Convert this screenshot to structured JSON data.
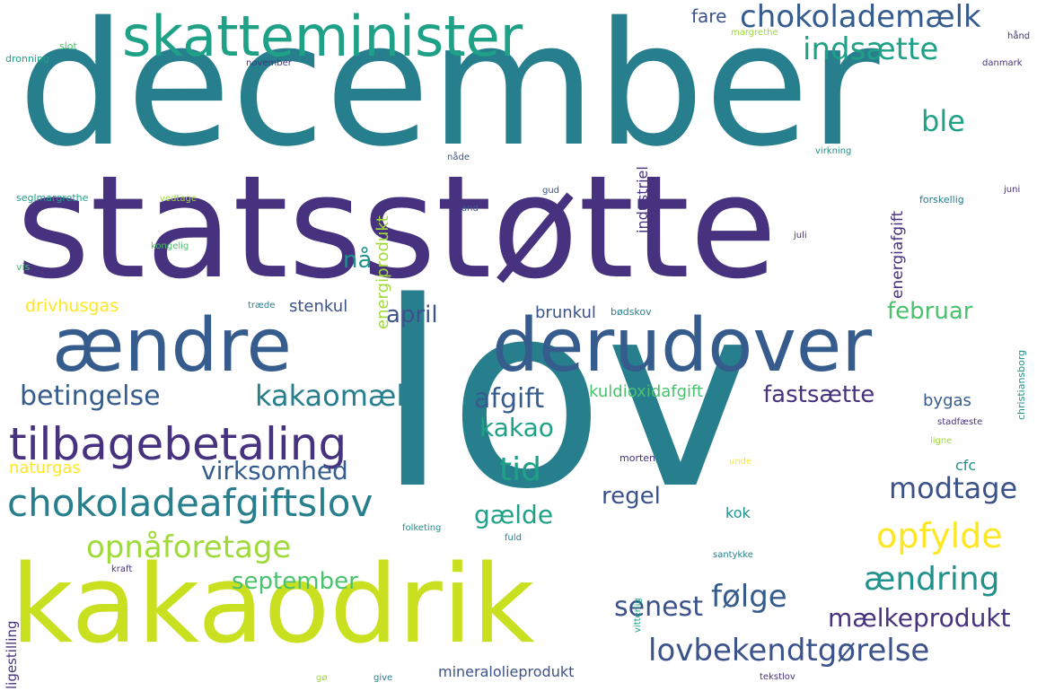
{
  "colors": {
    "purple": "#46327e",
    "indigo": "#3b528b",
    "blue": "#365c8d",
    "teal": "#277f8e",
    "sea": "#21918c",
    "green": "#1fa187",
    "lightgreen": "#4ac16d",
    "lime": "#a0da39",
    "yellow": "#fde725",
    "chartreuse": "#c8e020"
  },
  "words": [
    {
      "text": "december"
    },
    {
      "text": "statsstøtte"
    },
    {
      "text": "lov"
    },
    {
      "text": "kakaodrik"
    },
    {
      "text": "skatteminister"
    },
    {
      "text": "ændre"
    },
    {
      "text": "derudover"
    },
    {
      "text": "tilbagebetaling"
    },
    {
      "text": "chokoladeafgiftslov"
    },
    {
      "text": "chokolademælk"
    },
    {
      "text": "indsætte"
    },
    {
      "text": "ble"
    },
    {
      "text": "kakaomælk"
    },
    {
      "text": "betingelse"
    },
    {
      "text": "afgift"
    },
    {
      "text": "kakao"
    },
    {
      "text": "tid"
    },
    {
      "text": "virksomhed"
    },
    {
      "text": "opnåforetage"
    },
    {
      "text": "september"
    },
    {
      "text": "opfylde"
    },
    {
      "text": "modtage"
    },
    {
      "text": "ændring"
    },
    {
      "text": "følge"
    },
    {
      "text": "senest"
    },
    {
      "text": "mælkeprodukt"
    },
    {
      "text": "lovbekendtgørelse"
    },
    {
      "text": "regel"
    },
    {
      "text": "gælde"
    },
    {
      "text": "fastsætte"
    },
    {
      "text": "februar"
    },
    {
      "text": "april"
    },
    {
      "text": "brunkul"
    },
    {
      "text": "stenkul"
    },
    {
      "text": "nå"
    },
    {
      "text": "fare"
    },
    {
      "text": "drivhusgas"
    },
    {
      "text": "naturgas"
    },
    {
      "text": "kuldioxidafgift"
    },
    {
      "text": "bygas"
    },
    {
      "text": "cfc"
    },
    {
      "text": "kok"
    },
    {
      "text": "mineralolieprodukt"
    },
    {
      "text": "energiprodukt"
    },
    {
      "text": "industriel"
    },
    {
      "text": "energiafgift"
    },
    {
      "text": "christiansborg"
    },
    {
      "text": "ligestilling"
    },
    {
      "text": "vitterlig"
    },
    {
      "text": "slot"
    },
    {
      "text": "dronning"
    },
    {
      "text": "margrethe"
    },
    {
      "text": "hånd"
    },
    {
      "text": "danmark"
    },
    {
      "text": "november"
    },
    {
      "text": "nåde"
    },
    {
      "text": "virkning"
    },
    {
      "text": "seglmargrethe"
    },
    {
      "text": "vedtage"
    },
    {
      "text": "gud"
    },
    {
      "text": "and"
    },
    {
      "text": "forskellig"
    },
    {
      "text": "juni"
    },
    {
      "text": "kongelig"
    },
    {
      "text": "juli"
    },
    {
      "text": "vis"
    },
    {
      "text": "træde"
    },
    {
      "text": "bødskov"
    },
    {
      "text": "stadfæste"
    },
    {
      "text": "ligne"
    },
    {
      "text": "morten"
    },
    {
      "text": "unde"
    },
    {
      "text": "folketing"
    },
    {
      "text": "fuld"
    },
    {
      "text": "santykke"
    },
    {
      "text": "kraft"
    },
    {
      "text": "gø"
    },
    {
      "text": "give"
    },
    {
      "text": "tekstlov"
    }
  ]
}
